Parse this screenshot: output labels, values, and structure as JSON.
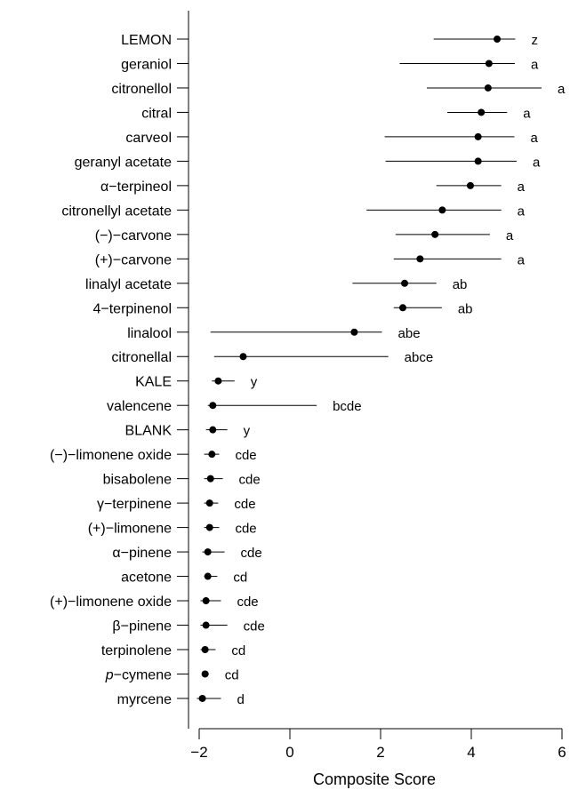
{
  "chart_data": {
    "type": "scatter",
    "subtype": "dot-and-whisker",
    "title": "",
    "xlabel": "Composite Score",
    "ylabel": "",
    "xlim": [
      -2.3,
      6.1
    ],
    "xticks": [
      -2,
      0,
      2,
      4,
      6
    ],
    "xtick_labels": [
      "−2",
      "0",
      "2",
      "4",
      "6"
    ],
    "grid": false,
    "legend": "none",
    "series": [
      {
        "points": [
          {
            "label": "LEMON",
            "label_parts": [
              {
                "t": "LEMON"
              }
            ],
            "value": 4.57,
            "low": 3.17,
            "high": 4.97,
            "group": "z"
          },
          {
            "label": "geraniol",
            "label_parts": [
              {
                "t": "geraniol"
              }
            ],
            "value": 4.39,
            "low": 2.42,
            "high": 4.96,
            "group": "a"
          },
          {
            "label": "citronellol",
            "label_parts": [
              {
                "t": "citronellol"
              }
            ],
            "value": 4.37,
            "low": 3.02,
            "high": 5.55,
            "group": "a"
          },
          {
            "label": "citral",
            "label_parts": [
              {
                "t": "citral"
              }
            ],
            "value": 4.22,
            "low": 3.47,
            "high": 4.79,
            "group": "a"
          },
          {
            "label": "carveol",
            "label_parts": [
              {
                "t": "carveol"
              }
            ],
            "value": 4.15,
            "low": 2.09,
            "high": 4.95,
            "group": "a"
          },
          {
            "label": "geranyl acetate",
            "label_parts": [
              {
                "t": "geranyl acetate"
              }
            ],
            "value": 4.15,
            "low": 2.11,
            "high": 5.0,
            "group": "a"
          },
          {
            "label": "α−terpineol",
            "label_parts": [
              {
                "t": "α−terpineol"
              }
            ],
            "value": 3.98,
            "low": 3.23,
            "high": 4.66,
            "group": "a"
          },
          {
            "label": "citronellyl acetate",
            "label_parts": [
              {
                "t": "citronellyl acetate"
              }
            ],
            "value": 3.36,
            "low": 1.69,
            "high": 4.66,
            "group": "a"
          },
          {
            "label": "(−)−carvone",
            "label_parts": [
              {
                "t": "(−)−carvone"
              }
            ],
            "value": 3.2,
            "low": 2.33,
            "high": 4.41,
            "group": "a"
          },
          {
            "label": "(+)−carvone",
            "label_parts": [
              {
                "t": "(+)−carvone"
              }
            ],
            "value": 2.87,
            "low": 2.29,
            "high": 4.66,
            "group": "a"
          },
          {
            "label": "linalyl acetate",
            "label_parts": [
              {
                "t": "linalyl acetate"
              }
            ],
            "value": 2.53,
            "low": 1.38,
            "high": 3.23,
            "group": "ab"
          },
          {
            "label": "4−terpinenol",
            "label_parts": [
              {
                "t": "4−terpinenol"
              }
            ],
            "value": 2.49,
            "low": 2.29,
            "high": 3.35,
            "group": "ab"
          },
          {
            "label": "linalool",
            "label_parts": [
              {
                "t": "linalool"
              }
            ],
            "value": 1.42,
            "low": -1.75,
            "high": 2.03,
            "group": "abe"
          },
          {
            "label": "citronellal",
            "label_parts": [
              {
                "t": "citronellal"
              }
            ],
            "value": -1.03,
            "low": -1.67,
            "high": 2.17,
            "group": "abce"
          },
          {
            "label": "KALE",
            "label_parts": [
              {
                "t": "KALE"
              }
            ],
            "value": -1.58,
            "low": -1.72,
            "high": -1.22,
            "group": "y"
          },
          {
            "label": "valencene",
            "label_parts": [
              {
                "t": "valencene"
              }
            ],
            "value": -1.7,
            "low": -1.81,
            "high": 0.59,
            "group": "bcde"
          },
          {
            "label": "BLANK",
            "label_parts": [
              {
                "t": "BLANK"
              }
            ],
            "value": -1.7,
            "low": -1.85,
            "high": -1.38,
            "group": "y"
          },
          {
            "label": "(−)−limonene oxide",
            "label_parts": [
              {
                "t": "(−)−limonene oxide"
              }
            ],
            "value": -1.72,
            "low": -1.89,
            "high": -1.56,
            "group": "cde"
          },
          {
            "label": "bisabolene",
            "label_parts": [
              {
                "t": "bisabolene"
              }
            ],
            "value": -1.75,
            "low": -1.89,
            "high": -1.48,
            "group": "cde"
          },
          {
            "label": "γ−terpinene",
            "label_parts": [
              {
                "t": "γ−terpinene"
              }
            ],
            "value": -1.77,
            "low": -1.89,
            "high": -1.58,
            "group": "cde"
          },
          {
            "label": "(+)−limonene",
            "label_parts": [
              {
                "t": "(+)−limonene"
              }
            ],
            "value": -1.77,
            "low": -1.89,
            "high": -1.56,
            "group": "cde"
          },
          {
            "label": "α−pinene",
            "label_parts": [
              {
                "t": "α−pinene"
              }
            ],
            "value": -1.81,
            "low": -1.93,
            "high": -1.44,
            "group": "cde"
          },
          {
            "label": "acetone",
            "label_parts": [
              {
                "t": "acetone"
              }
            ],
            "value": -1.81,
            "low": -1.89,
            "high": -1.6,
            "group": "cd"
          },
          {
            "label": "(+)−limonene oxide",
            "label_parts": [
              {
                "t": "(+)−limonene oxide"
              }
            ],
            "value": -1.85,
            "low": -1.97,
            "high": -1.52,
            "group": "cde"
          },
          {
            "label": "β−pinene",
            "label_parts": [
              {
                "t": "β−pinene"
              }
            ],
            "value": -1.85,
            "low": -1.97,
            "high": -1.38,
            "group": "cde"
          },
          {
            "label": "terpinolene",
            "label_parts": [
              {
                "t": "terpinolene"
              }
            ],
            "value": -1.87,
            "low": -1.97,
            "high": -1.64,
            "group": "cd"
          },
          {
            "label": "p−cymene",
            "label_parts": [
              {
                "t": "p",
                "italic": true
              },
              {
                "t": "−cymene"
              }
            ],
            "value": -1.87,
            "low": -1.91,
            "high": -1.79,
            "group": "cd"
          },
          {
            "label": "myrcene",
            "label_parts": [
              {
                "t": "myrcene"
              }
            ],
            "value": -1.93,
            "low": -2.05,
            "high": -1.52,
            "group": "d"
          }
        ]
      }
    ],
    "colors": {
      "points": "#000000",
      "axis": "#000000"
    }
  }
}
